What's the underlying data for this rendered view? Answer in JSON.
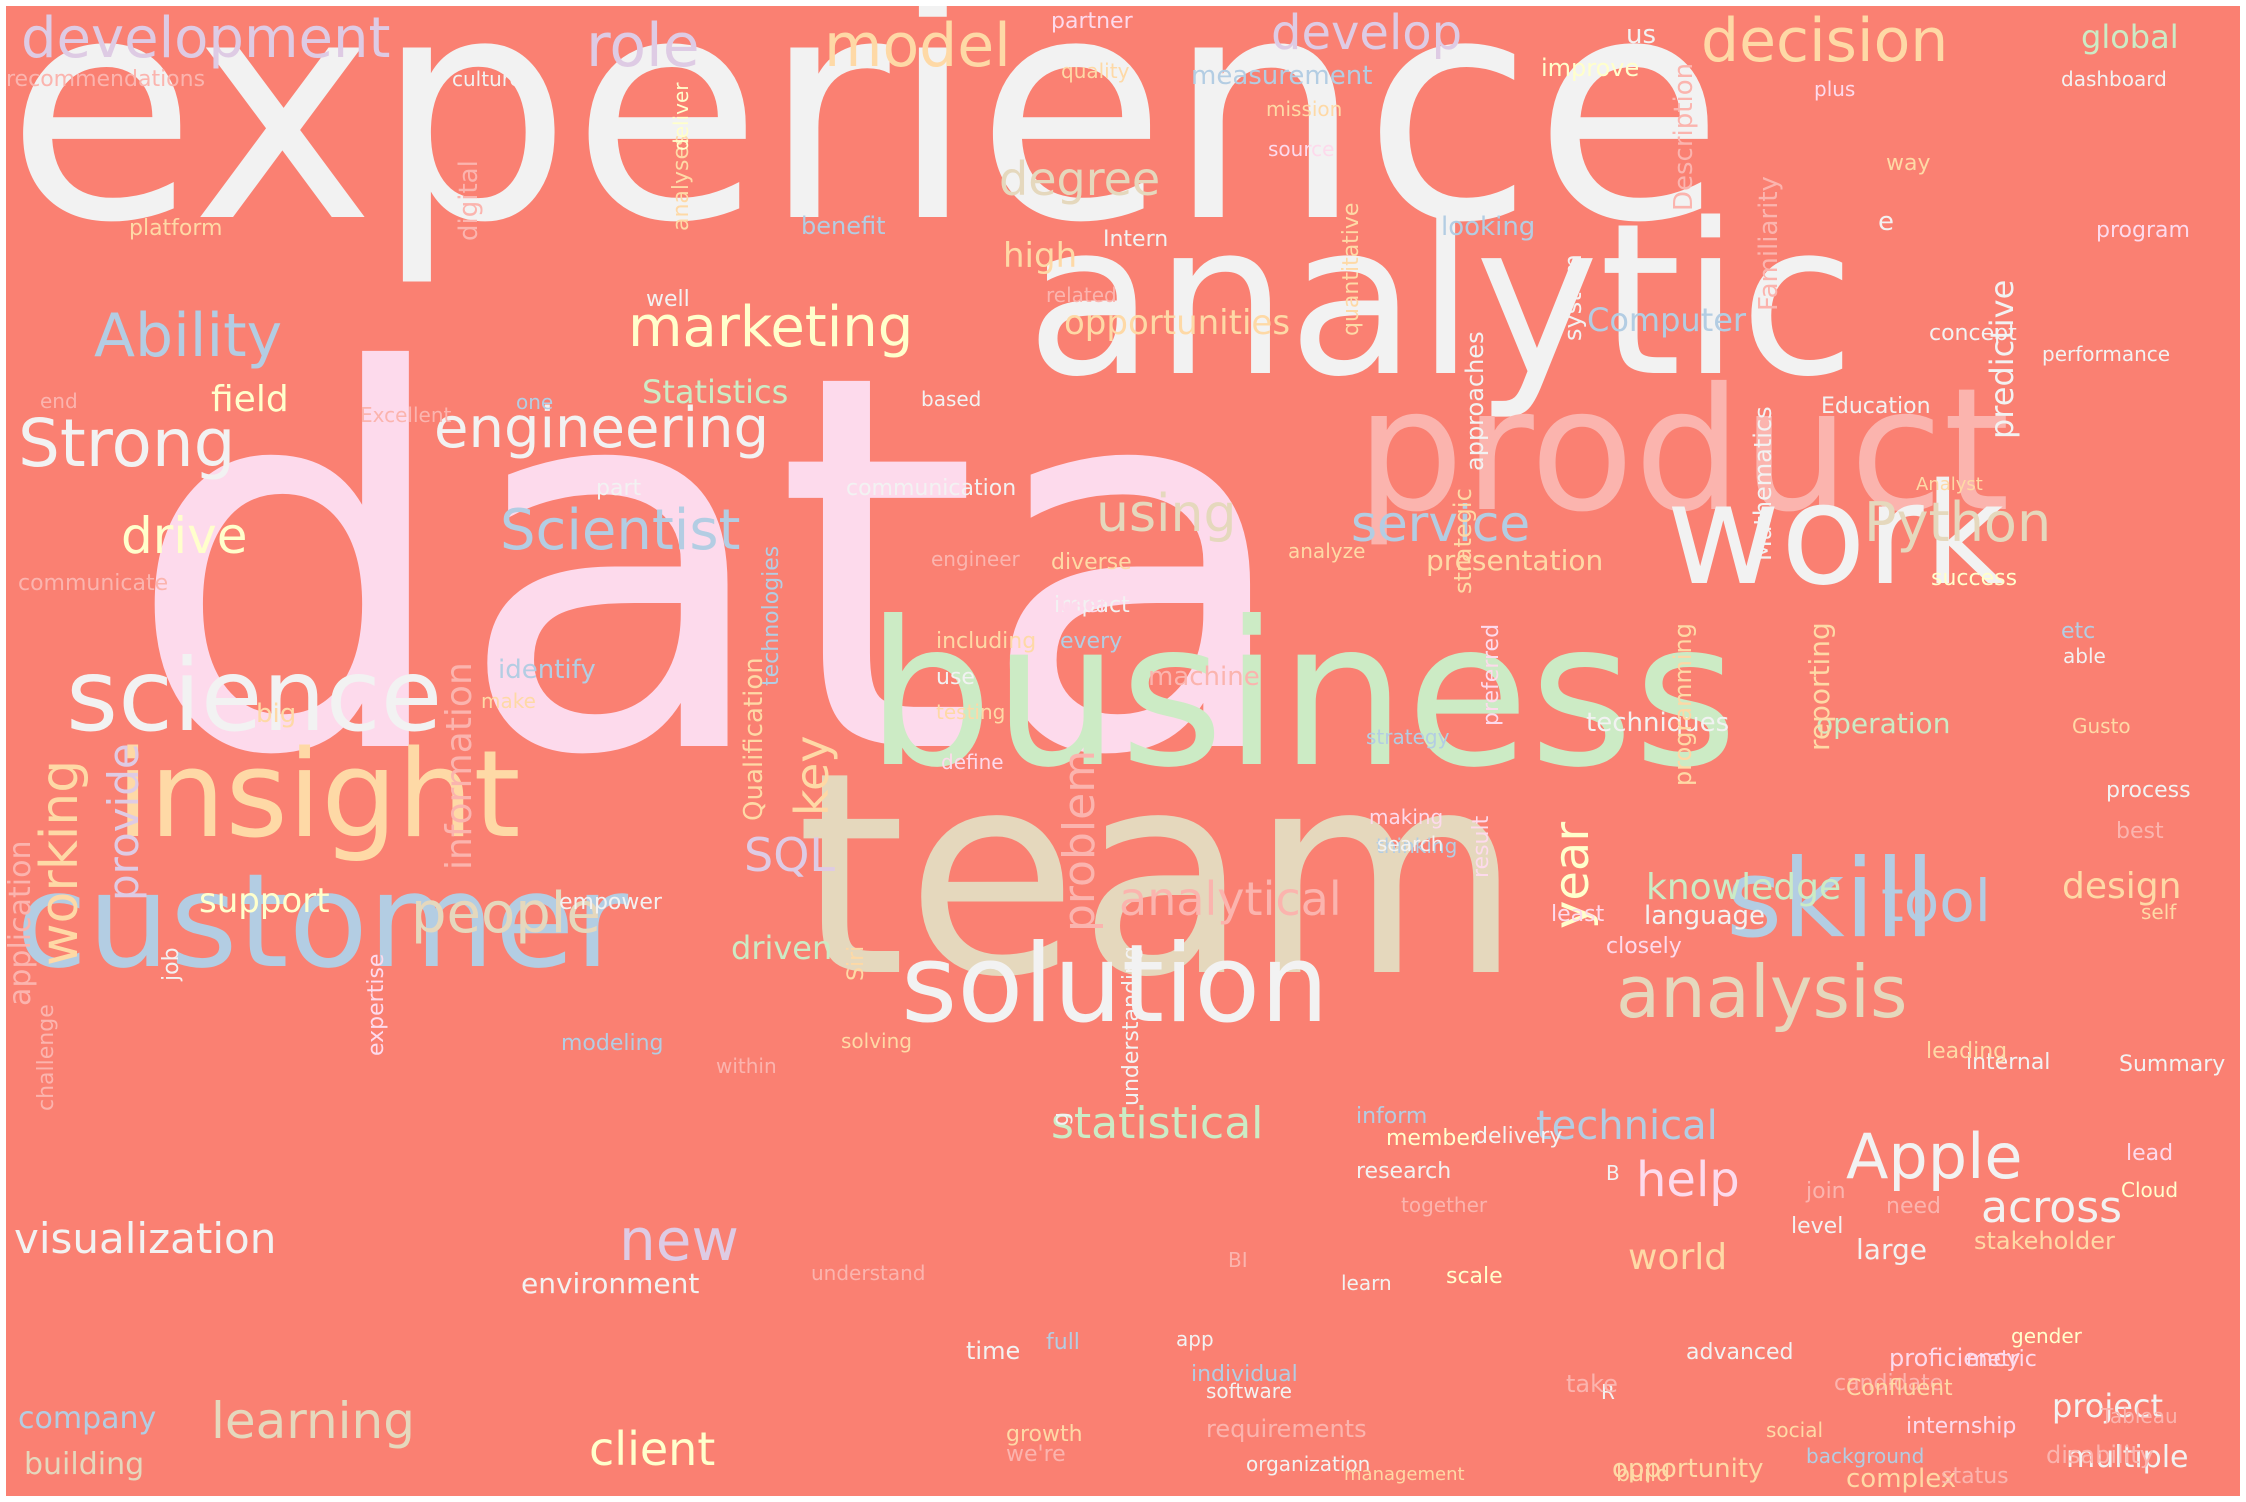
{
  "palette": {
    "background": "#fa8072",
    "white": "#f2f2f2",
    "pink": "#fddaec",
    "green": "#ccebc5",
    "beige": "#e5d8bd",
    "blue": "#b3cde3",
    "yellow": "#ffffcc",
    "orange": "#fed9a6",
    "lavender": "#decbe4",
    "rose": "#fbb4ae"
  },
  "words": [
    {
      "text": "experience",
      "color": "#f2f2f2"
    },
    {
      "text": "data",
      "color": "#fddaec"
    },
    {
      "text": "analytic",
      "color": "#f2f2f2"
    },
    {
      "text": "business",
      "color": "#ccebc5"
    },
    {
      "text": "team",
      "color": "#e5d8bd"
    },
    {
      "text": "product",
      "color": "#fbb4ae"
    },
    {
      "text": "work",
      "color": "#f2f2f2"
    },
    {
      "text": "customer",
      "color": "#b3cde3"
    },
    {
      "text": "insight",
      "color": "#fed9a6"
    },
    {
      "text": "science",
      "color": "#f2f2f2"
    },
    {
      "text": "solution",
      "color": "#f2f2f2"
    },
    {
      "text": "skill",
      "color": "#b3cde3"
    },
    {
      "text": "analysis",
      "color": "#e5d8bd"
    },
    {
      "text": "development",
      "color": "#decbe4"
    },
    {
      "text": "role",
      "color": "#decbe4"
    },
    {
      "text": "model",
      "color": "#fed9a6"
    },
    {
      "text": "develop",
      "color": "#decbe4"
    },
    {
      "text": "decision",
      "color": "#fed9a6"
    },
    {
      "text": "global",
      "color": "#ccebc5"
    },
    {
      "text": "Ability",
      "color": "#b3cde3"
    },
    {
      "text": "marketing",
      "color": "#ffffcc"
    },
    {
      "text": "engineering",
      "color": "#f2f2f2"
    },
    {
      "text": "Strong",
      "color": "#f2f2f2"
    },
    {
      "text": "Python",
      "color": "#e5d8bd"
    },
    {
      "text": "Scientist",
      "color": "#b3cde3"
    },
    {
      "text": "service",
      "color": "#b3cde3"
    },
    {
      "text": "using",
      "color": "#e5d8bd"
    },
    {
      "text": "people",
      "color": "#e5d8bd"
    },
    {
      "text": "learning",
      "color": "#e5d8bd"
    },
    {
      "text": "client",
      "color": "#ffffcc"
    },
    {
      "text": "Apple",
      "color": "#f2f2f2"
    },
    {
      "text": "across",
      "color": "#f2f2f2"
    },
    {
      "text": "help",
      "color": "#fddaec"
    },
    {
      "text": "tool",
      "color": "#b3cde3"
    },
    {
      "text": "new",
      "color": "#decbe4"
    },
    {
      "text": "visualization",
      "color": "#f2f2f2"
    },
    {
      "text": "statistical",
      "color": "#ccebc5"
    },
    {
      "text": "technical",
      "color": "#b3cde3"
    },
    {
      "text": "analytical",
      "color": "#fbb4ae"
    },
    {
      "text": "degree",
      "color": "#e5d8bd"
    },
    {
      "text": "opportunities",
      "color": "#fed9a6"
    },
    {
      "text": "drive",
      "color": "#ffffcc"
    },
    {
      "text": "SQL",
      "color": "#decbe4"
    },
    {
      "text": "year",
      "color": "#ffffcc"
    },
    {
      "text": "key",
      "color": "#fed9a6"
    },
    {
      "text": "working",
      "color": "#fed9a6"
    },
    {
      "text": "provide",
      "color": "#decbe4"
    },
    {
      "text": "information",
      "color": "#fbb4ae"
    },
    {
      "text": "problem",
      "color": "#fbb4ae"
    },
    {
      "text": "predictive",
      "color": "#f2f2f2"
    },
    {
      "text": "Statistics",
      "color": "#ccebc5"
    },
    {
      "text": "field",
      "color": "#ffffcc"
    },
    {
      "text": "knowledge",
      "color": "#ccebc5"
    },
    {
      "text": "design",
      "color": "#fed9a6"
    },
    {
      "text": "world",
      "color": "#fed9a6"
    },
    {
      "text": "project",
      "color": "#f2f2f2"
    },
    {
      "text": "company",
      "color": "#b3cde3"
    },
    {
      "text": "building",
      "color": "#e5d8bd"
    },
    {
      "text": "multiple",
      "color": "#f2f2f2"
    },
    {
      "text": "support",
      "color": "#ffffcc"
    },
    {
      "text": "driven",
      "color": "#ccebc5"
    },
    {
      "text": "high",
      "color": "#fed9a6"
    },
    {
      "text": "Computer",
      "color": "#b3cde3"
    },
    {
      "text": "presentation",
      "color": "#fed9a6"
    },
    {
      "text": "opportunity",
      "color": "#fed9a6"
    },
    {
      "text": "large",
      "color": "#f2f2f2"
    },
    {
      "text": "stakeholder",
      "color": "#fed9a6"
    },
    {
      "text": "environment",
      "color": "#f2f2f2"
    },
    {
      "text": "techniques",
      "color": "#f2f2f2"
    },
    {
      "text": "operation",
      "color": "#ccebc5"
    },
    {
      "text": "language",
      "color": "#f2f2f2"
    },
    {
      "text": "identify",
      "color": "#b3cde3"
    },
    {
      "text": "machine",
      "color": "#fbb4ae"
    },
    {
      "text": "recommendations",
      "color": "#fbb4ae"
    },
    {
      "text": "culture",
      "color": "#f2f2f2"
    },
    {
      "text": "partner",
      "color": "#fddaec"
    },
    {
      "text": "quality",
      "color": "#fed9a6"
    },
    {
      "text": "measurement",
      "color": "#b3cde3"
    },
    {
      "text": "improve",
      "color": "#ffffcc"
    },
    {
      "text": "dashboard",
      "color": "#f2f2f2"
    },
    {
      "text": "us",
      "color": "#f2f2f2"
    },
    {
      "text": "plus",
      "color": "#fddaec"
    },
    {
      "text": "mission",
      "color": "#fed9a6"
    },
    {
      "text": "source",
      "color": "#fddaec"
    },
    {
      "text": "way",
      "color": "#fed9a6"
    },
    {
      "text": "platform",
      "color": "#fed9a6"
    },
    {
      "text": "benefit",
      "color": "#b3cde3"
    },
    {
      "text": "Intern",
      "color": "#f2f2f2"
    },
    {
      "text": "looking",
      "color": "#b3cde3"
    },
    {
      "text": "program",
      "color": "#fddaec"
    },
    {
      "text": "e",
      "color": "#f2f2f2"
    },
    {
      "text": "related",
      "color": "#fbb4ae"
    },
    {
      "text": "well",
      "color": "#f2f2f2"
    },
    {
      "text": "concept",
      "color": "#f2f2f2"
    },
    {
      "text": "performance",
      "color": "#f2f2f2"
    },
    {
      "text": "end",
      "color": "#fbb4ae"
    },
    {
      "text": "Excellent",
      "color": "#fbb4ae"
    },
    {
      "text": "one",
      "color": "#b3cde3"
    },
    {
      "text": "based",
      "color": "#f2f2f2"
    },
    {
      "text": "Education",
      "color": "#f2f2f2"
    },
    {
      "text": "Analyst",
      "color": "#fed9a6"
    },
    {
      "text": "part",
      "color": "#f2f2f2"
    },
    {
      "text": "communication",
      "color": "#f2f2f2"
    },
    {
      "text": "engineer",
      "color": "#fbb4ae"
    },
    {
      "text": "diverse",
      "color": "#fed9a6"
    },
    {
      "text": "impact",
      "color": "#f2f2f2"
    },
    {
      "text": "analyze",
      "color": "#fed9a6"
    },
    {
      "text": "success",
      "color": "#ffffcc"
    },
    {
      "text": "user",
      "color": "#fddaec"
    },
    {
      "text": "communicate",
      "color": "#fbb4ae"
    },
    {
      "text": "including",
      "color": "#fed9a6"
    },
    {
      "text": "every",
      "color": "#b3cde3"
    },
    {
      "text": "etc",
      "color": "#b3cde3"
    },
    {
      "text": "able",
      "color": "#f2f2f2"
    },
    {
      "text": "use",
      "color": "#f2f2f2"
    },
    {
      "text": "testing",
      "color": "#fed9a6"
    },
    {
      "text": "make",
      "color": "#fed9a6"
    },
    {
      "text": "Gusto",
      "color": "#fed9a6"
    },
    {
      "text": "big",
      "color": "#fed9a6"
    },
    {
      "text": "strategy",
      "color": "#b3cde3"
    },
    {
      "text": "define",
      "color": "#fddaec"
    },
    {
      "text": "making",
      "color": "#fddaec"
    },
    {
      "text": "thinking",
      "color": "#b3cde3"
    },
    {
      "text": "process",
      "color": "#f2f2f2"
    },
    {
      "text": "best",
      "color": "#fbb4ae"
    },
    {
      "text": "search",
      "color": "#f2f2f2"
    },
    {
      "text": "empower",
      "color": "#f2f2f2"
    },
    {
      "text": "self",
      "color": "#fed9a6"
    },
    {
      "text": "least",
      "color": "#fddaec"
    },
    {
      "text": "closely",
      "color": "#fddaec"
    },
    {
      "text": "Summary",
      "color": "#f2f2f2"
    },
    {
      "text": "internal",
      "color": "#f2f2f2"
    },
    {
      "text": "modeling",
      "color": "#b3cde3"
    },
    {
      "text": "solving",
      "color": "#fed9a6"
    },
    {
      "text": "within",
      "color": "#fbb4ae"
    },
    {
      "text": "leading",
      "color": "#fed9a6"
    },
    {
      "text": "inform",
      "color": "#b3cde3"
    },
    {
      "text": "member",
      "color": "#ffffcc"
    },
    {
      "text": "research",
      "color": "#f2f2f2"
    },
    {
      "text": "B",
      "color": "#f2f2f2"
    },
    {
      "text": "level",
      "color": "#f2f2f2"
    },
    {
      "text": "need",
      "color": "#fbb4ae"
    },
    {
      "text": "delivery",
      "color": "#f2f2f2"
    },
    {
      "text": "join",
      "color": "#fbb4ae"
    },
    {
      "text": "lead",
      "color": "#fddaec"
    },
    {
      "text": "Cloud",
      "color": "#ffffcc"
    },
    {
      "text": "together",
      "color": "#fbb4ae"
    },
    {
      "text": "BI",
      "color": "#fbb4ae"
    },
    {
      "text": "learn",
      "color": "#f2f2f2"
    },
    {
      "text": "understand",
      "color": "#fbb4ae"
    },
    {
      "text": "scale",
      "color": "#ffffcc"
    },
    {
      "text": "app",
      "color": "#f2f2f2"
    },
    {
      "text": "gender",
      "color": "#ffffcc"
    },
    {
      "text": "time",
      "color": "#f2f2f2"
    },
    {
      "text": "full",
      "color": "#b3cde3"
    },
    {
      "text": "advanced",
      "color": "#f2f2f2"
    },
    {
      "text": "candidate",
      "color": "#fbb4ae"
    },
    {
      "text": "metric",
      "color": "#fddaec"
    },
    {
      "text": "R",
      "color": "#f2f2f2"
    },
    {
      "text": "take",
      "color": "#fbb4ae"
    },
    {
      "text": "software",
      "color": "#f2f2f2"
    },
    {
      "text": "individual",
      "color": "#b3cde3"
    },
    {
      "text": "Confluent",
      "color": "#fed9a6"
    },
    {
      "text": "proficiency",
      "color": "#fddaec"
    },
    {
      "text": "internship",
      "color": "#fddaec"
    },
    {
      "text": "Tableau",
      "color": "#fbb4ae"
    },
    {
      "text": "social",
      "color": "#fed9a6"
    },
    {
      "text": "requirements",
      "color": "#fbb4ae"
    },
    {
      "text": "disability",
      "color": "#fbb4ae"
    },
    {
      "text": "we're",
      "color": "#fbb4ae"
    },
    {
      "text": "growth",
      "color": "#fed9a6"
    },
    {
      "text": "background",
      "color": "#b3cde3"
    },
    {
      "text": "organization",
      "color": "#f2f2f2"
    },
    {
      "text": "management",
      "color": "#fed9a6"
    },
    {
      "text": "build",
      "color": "#fed9a6"
    },
    {
      "text": "complex",
      "color": "#fed9a6"
    },
    {
      "text": "status",
      "color": "#fbb4ae"
    },
    {
      "text": "digital",
      "color": "#fbb4ae"
    },
    {
      "text": "analyses",
      "color": "#fed9a6"
    },
    {
      "text": "deliver",
      "color": "#ffffcc"
    },
    {
      "text": "quantitative",
      "color": "#fed9a6"
    },
    {
      "text": "approaches",
      "color": "#f2f2f2"
    },
    {
      "text": "system",
      "color": "#f2f2f2"
    },
    {
      "text": "Description",
      "color": "#fbb4ae"
    },
    {
      "text": "Familiarity",
      "color": "#fbb4ae"
    },
    {
      "text": "Mathematics",
      "color": "#f2f2f2"
    },
    {
      "text": "strategic",
      "color": "#fed9a6"
    },
    {
      "text": "programming",
      "color": "#fed9a6"
    },
    {
      "text": "reporting",
      "color": "#fed9a6"
    },
    {
      "text": "preferred",
      "color": "#fddaec"
    },
    {
      "text": "result",
      "color": "#fddaec"
    },
    {
      "text": "Qualification",
      "color": "#fed9a6"
    },
    {
      "text": "technologies",
      "color": "#b3cde3"
    },
    {
      "text": "Siri",
      "color": "#fed9a6"
    },
    {
      "text": "application",
      "color": "#fbb4ae"
    },
    {
      "text": "challenge",
      "color": "#fbb4ae"
    },
    {
      "text": "job",
      "color": "#f2f2f2"
    },
    {
      "text": "expertise",
      "color": "#fddaec"
    },
    {
      "text": "g",
      "color": "#f2f2f2"
    },
    {
      "text": "understanding",
      "color": "#f2f2f2"
    }
  ]
}
